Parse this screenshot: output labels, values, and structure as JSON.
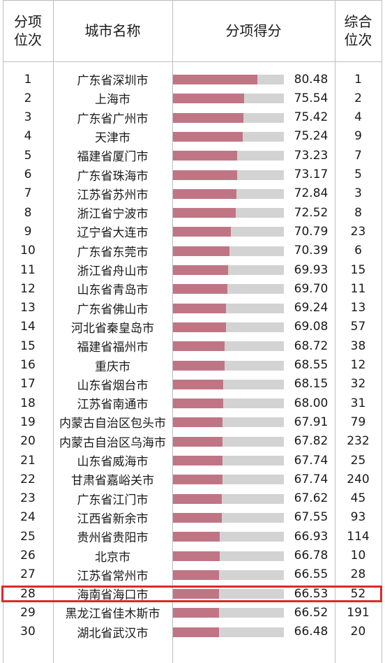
{
  "header": {
    "col1": [
      "分项",
      "位次"
    ],
    "col2": "城市名称",
    "col3": "分项得分",
    "col4": [
      "综合",
      "位次"
    ]
  },
  "rows": [
    {
      "rank": "1",
      "city": "广东省深圳市",
      "score": "80.48",
      "overall": "1"
    },
    {
      "rank": "2",
      "city": "上海市",
      "score": "75.54",
      "overall": "2"
    },
    {
      "rank": "3",
      "city": "广东省广州市",
      "score": "75.42",
      "overall": "4"
    },
    {
      "rank": "4",
      "city": "天津市",
      "score": "75.24",
      "overall": "9"
    },
    {
      "rank": "5",
      "city": "福建省厦门市",
      "score": "73.23",
      "overall": "7"
    },
    {
      "rank": "6",
      "city": "广东省珠海市",
      "score": "73.17",
      "overall": "5"
    },
    {
      "rank": "7",
      "city": "江苏省苏州市",
      "score": "72.84",
      "overall": "3"
    },
    {
      "rank": "8",
      "city": "浙江省宁波市",
      "score": "72.52",
      "overall": "8"
    },
    {
      "rank": "9",
      "city": "辽宁省大连市",
      "score": "70.79",
      "overall": "23"
    },
    {
      "rank": "10",
      "city": "广东省东莞市",
      "score": "70.39",
      "overall": "6"
    },
    {
      "rank": "11",
      "city": "浙江省舟山市",
      "score": "69.93",
      "overall": "15"
    },
    {
      "rank": "12",
      "city": "山东省青岛市",
      "score": "69.70",
      "overall": "11"
    },
    {
      "rank": "13",
      "city": "广东省佛山市",
      "score": "69.24",
      "overall": "13"
    },
    {
      "rank": "14",
      "city": "河北省秦皇岛市",
      "score": "69.08",
      "overall": "57"
    },
    {
      "rank": "15",
      "city": "福建省福州市",
      "score": "68.72",
      "overall": "38"
    },
    {
      "rank": "16",
      "city": "重庆市",
      "score": "68.55",
      "overall": "12"
    },
    {
      "rank": "17",
      "city": "山东省烟台市",
      "score": "68.15",
      "overall": "32"
    },
    {
      "rank": "18",
      "city": "江苏省南通市",
      "score": "68.00",
      "overall": "31"
    },
    {
      "rank": "19",
      "city": "内蒙古自治区包头市",
      "score": "67.91",
      "overall": "79"
    },
    {
      "rank": "20",
      "city": "内蒙古自治区乌海市",
      "score": "67.82",
      "overall": "232"
    },
    {
      "rank": "21",
      "city": "山东省威海市",
      "score": "67.74",
      "overall": "25"
    },
    {
      "rank": "22",
      "city": "甘肃省嘉峪关市",
      "score": "67.74",
      "overall": "240"
    },
    {
      "rank": "23",
      "city": "广东省江门市",
      "score": "67.62",
      "overall": "45"
    },
    {
      "rank": "24",
      "city": "江西省新余市",
      "score": "67.55",
      "overall": "93"
    },
    {
      "rank": "25",
      "city": "贵州省贵阳市",
      "score": "66.93",
      "overall": "114"
    },
    {
      "rank": "26",
      "city": "北京市",
      "score": "66.78",
      "overall": "10"
    },
    {
      "rank": "27",
      "city": "江苏省常州市",
      "score": "66.55",
      "overall": "28"
    },
    {
      "rank": "28",
      "city": "海南省海口市",
      "score": "66.53",
      "overall": "52"
    },
    {
      "rank": "29",
      "city": "黑龙江省佳木斯市",
      "score": "66.52",
      "overall": "191"
    },
    {
      "rank": "30",
      "city": "湖北省武汉市",
      "score": "66.48",
      "overall": "20"
    }
  ],
  "highlighted_rank": "28",
  "colors": {
    "bar": "#c07585",
    "bar_track": "#d3d3d3",
    "highlight": "#d92b2b"
  }
}
